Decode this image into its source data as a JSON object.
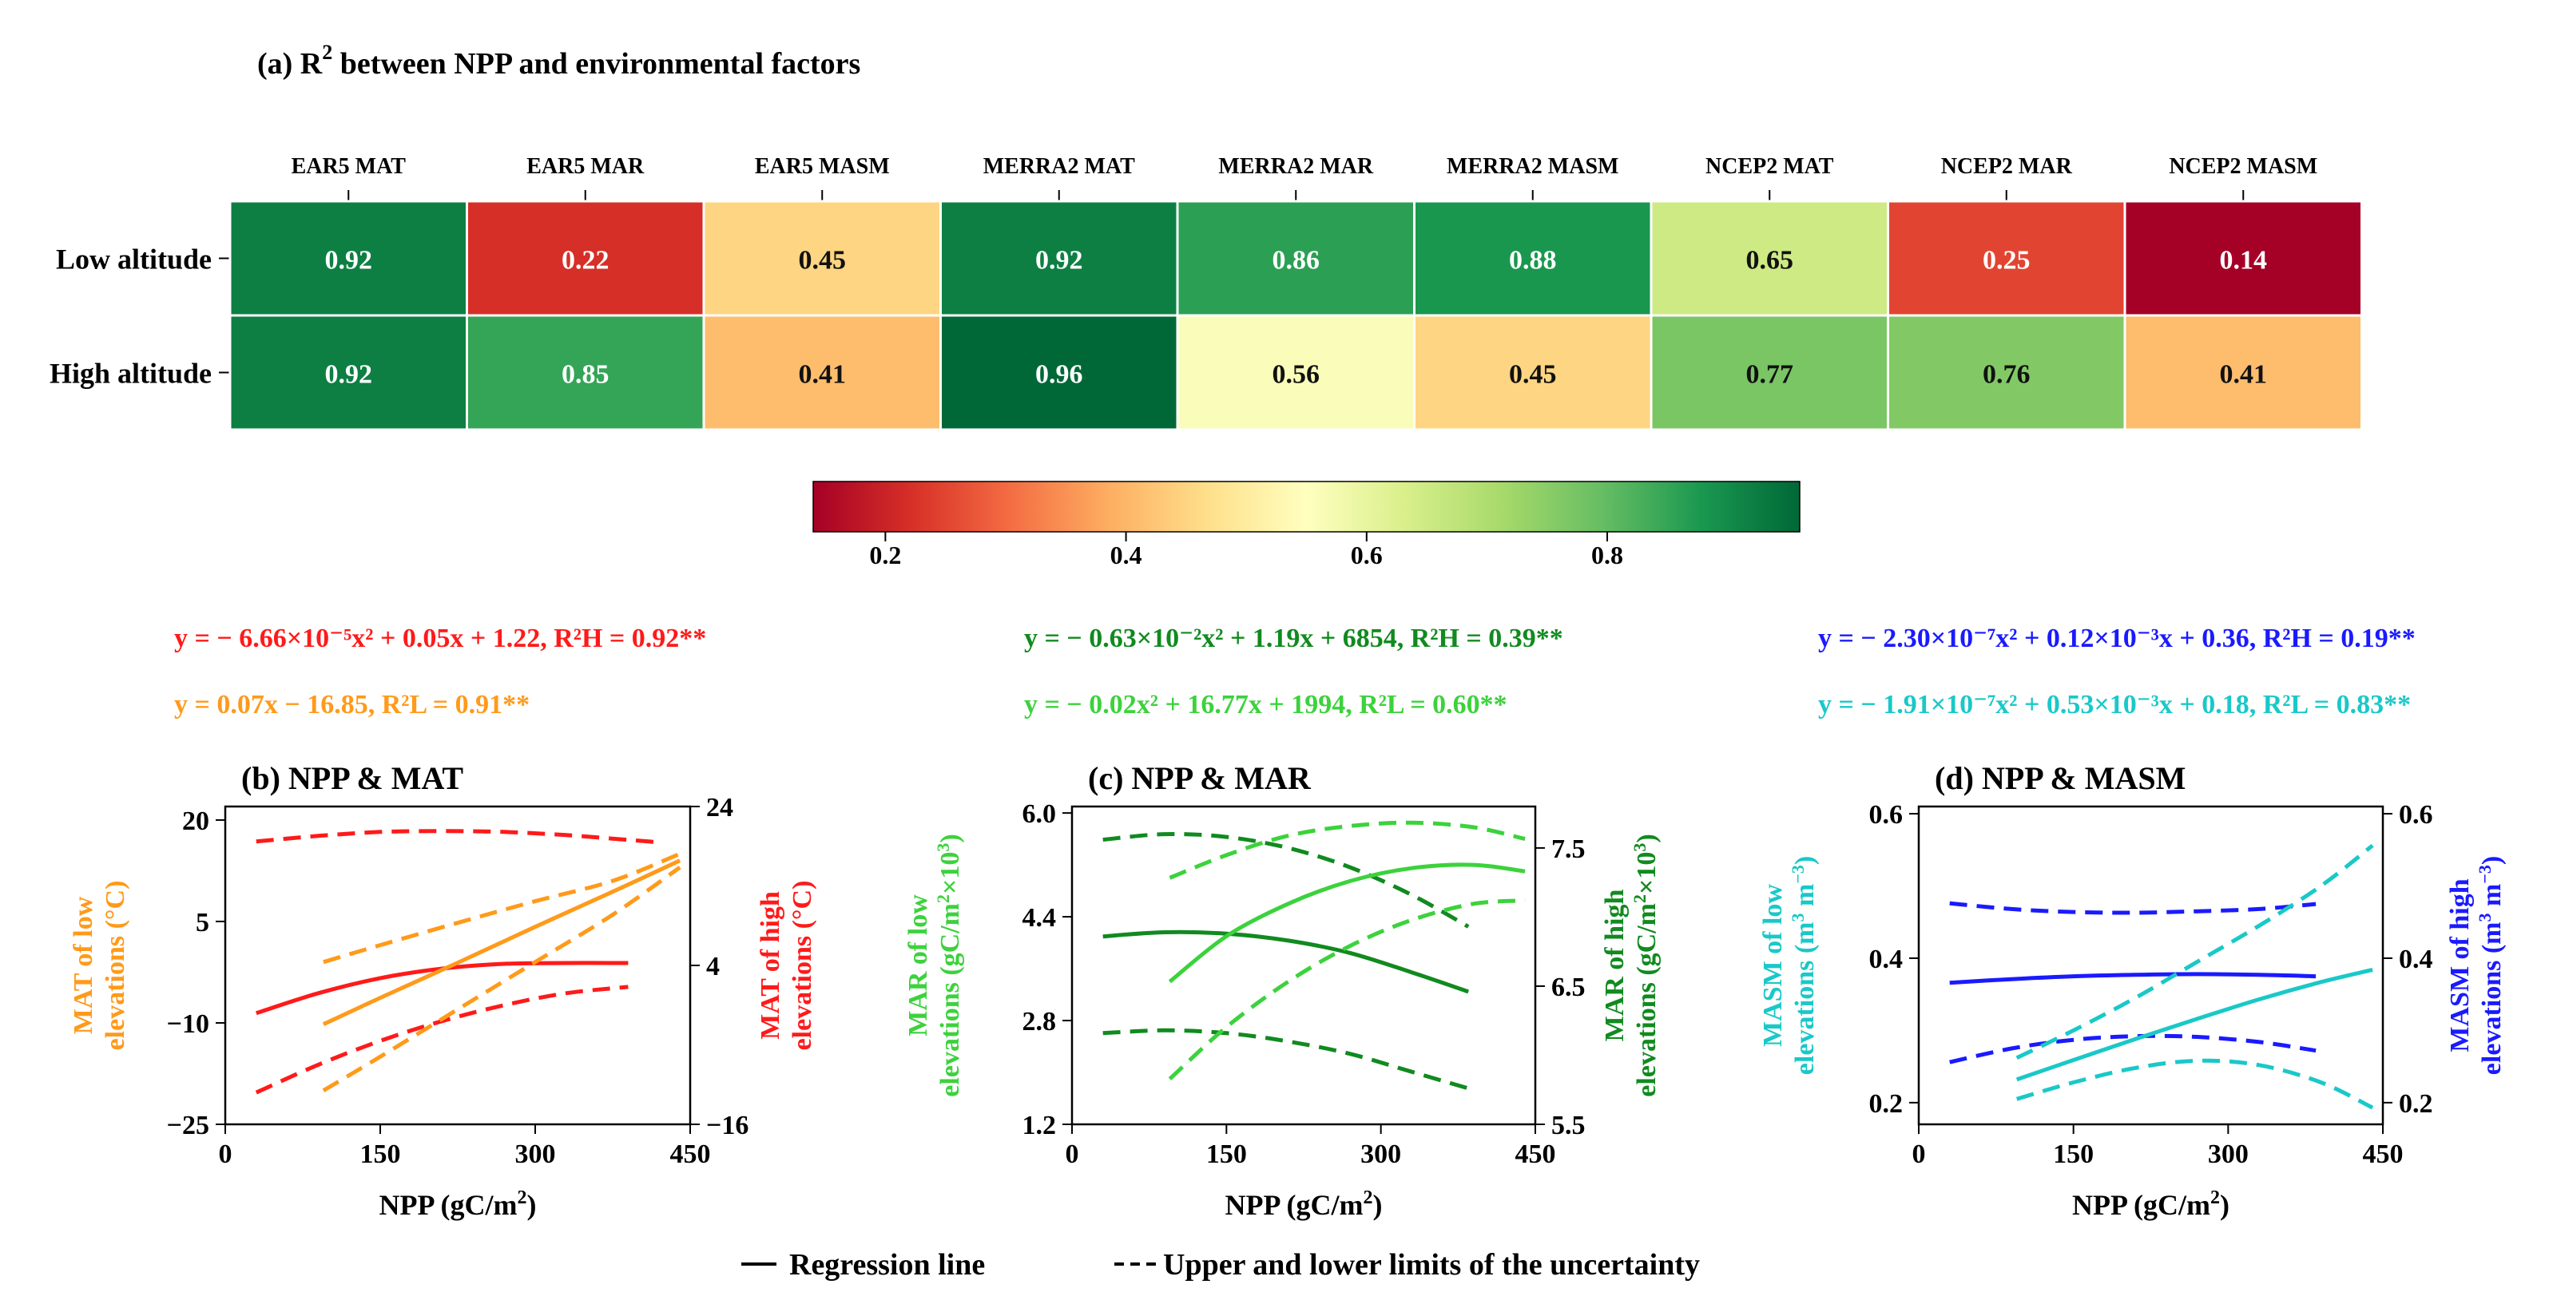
{
  "panel_a": {
    "title": "(a) R",
    "title_sup": "2",
    "title_rest": " between NPP and environmental factors"
  },
  "legend": {
    "solid_label": "Regression line",
    "dashed_label": "Upper and lower limits of the uncertainty"
  },
  "colors": {
    "red": "#ff1a1a",
    "orange": "#ff9a1a",
    "darkgreen": "#118a1f",
    "lightgreen": "#3cd23c",
    "blue": "#1a1aff",
    "cyan": "#1ac8c8"
  },
  "equations": {
    "b_high": "y = − 6.66×10⁻⁵x² + 0.05x + 1.22, R²H = 0.92**",
    "b_low": "y = 0.07x − 16.85, R²L = 0.91**",
    "c_high": "y = − 0.63×10⁻²x² + 1.19x + 6854, R²H = 0.39**",
    "c_low": "y = − 0.02x² + 16.77x + 1994, R²L = 0.60**",
    "d_high": "y = − 2.30×10⁻⁷x² + 0.12×10⁻³x + 0.36, R²H = 0.19**",
    "d_low": "y = − 1.91×10⁻⁷x² + 0.53×10⁻³x + 0.18, R²L = 0.83**"
  },
  "chart_data": [
    {
      "type": "heatmap",
      "title": "(a) R2 between NPP and environmental factors",
      "columns": [
        "EAR5 MAT",
        "EAR5 MAR",
        "EAR5 MASM",
        "MERRA2 MAT",
        "MERRA2 MAR",
        "MERRA2 MASM",
        "NCEP2 MAT",
        "NCEP2 MAR",
        "NCEP2 MASM"
      ],
      "rows": [
        "Low altitude",
        "High altitude"
      ],
      "values": [
        [
          0.92,
          0.22,
          0.45,
          0.92,
          0.86,
          0.88,
          0.65,
          0.25,
          0.14
        ],
        [
          0.92,
          0.85,
          0.41,
          0.96,
          0.56,
          0.45,
          0.77,
          0.76,
          0.41
        ]
      ],
      "labels": [
        [
          "0.92",
          "0.22",
          "0.45",
          "0.92",
          "0.86",
          "0.88",
          "0.65",
          "0.25",
          "0.14"
        ],
        [
          "0.92",
          "0.85",
          "0.41",
          "0.96",
          "0.56",
          "0.45",
          "0.77",
          "0.76",
          "0.41"
        ]
      ],
      "colorbar": {
        "range": [
          0.14,
          0.96
        ],
        "ticks": [
          0.2,
          0.4,
          0.6,
          0.8
        ],
        "tick_labels": [
          "0.2",
          "0.4",
          "0.6",
          "0.8"
        ],
        "colormap": "RdYlGn"
      }
    },
    {
      "type": "line",
      "title": "(b) NPP & MAT",
      "xlabel": "NPP (gC/m2)",
      "ylabel_left": "MAT of low elevations (°C)",
      "ylabel_right": "MAT of high elevations (°C)",
      "xlim": [
        0,
        450
      ],
      "ylim_left": [
        -25,
        22
      ],
      "ylim_right": [
        -16,
        24
      ],
      "xticks": [
        0,
        150,
        300,
        450
      ],
      "xtick_labels": [
        "0",
        "150",
        "300",
        "450"
      ],
      "yticks_left": [
        -25,
        -10,
        5,
        20
      ],
      "ytick_labels_left": [
        "−25",
        "−10",
        "5",
        "20"
      ],
      "yticks_right": [
        -16,
        4,
        24
      ],
      "ytick_labels_right": [
        "−16",
        "4",
        "24"
      ],
      "series": [
        {
          "name": "high_fit",
          "axis": "right",
          "color": "red",
          "dash": false,
          "x": [
            30,
            90,
            150,
            210,
            270,
            330,
            390
          ],
          "y": [
            -2.0,
            0.5,
            2.4,
            3.6,
            4.2,
            4.3,
            4.3
          ]
        },
        {
          "name": "high_upper",
          "axis": "right",
          "color": "red",
          "dash": true,
          "x": [
            30,
            90,
            150,
            210,
            270,
            330,
            390,
            420
          ],
          "y": [
            19.6,
            20.3,
            20.8,
            20.9,
            20.8,
            20.4,
            19.8,
            19.5
          ]
        },
        {
          "name": "high_lower",
          "axis": "right",
          "color": "red",
          "dash": true,
          "x": [
            30,
            90,
            150,
            210,
            270,
            330,
            390
          ],
          "y": [
            -12.0,
            -8.5,
            -5.5,
            -3.0,
            -1.0,
            0.5,
            1.3
          ]
        },
        {
          "name": "low_fit",
          "axis": "left",
          "color": "orange",
          "dash": false,
          "x": [
            95,
            150,
            225,
            300,
            375,
            440
          ],
          "y": [
            -10.2,
            -6.3,
            -1.1,
            4.2,
            9.4,
            14.0
          ]
        },
        {
          "name": "low_upper",
          "axis": "left",
          "color": "orange",
          "dash": true,
          "x": [
            95,
            150,
            225,
            300,
            375,
            440
          ],
          "y": [
            -1.0,
            1.5,
            4.8,
            8.0,
            11.0,
            15.0
          ]
        },
        {
          "name": "low_lower",
          "axis": "left",
          "color": "orange",
          "dash": true,
          "x": [
            95,
            150,
            225,
            300,
            375,
            440
          ],
          "y": [
            -20.0,
            -15.0,
            -8.0,
            -1.0,
            6.0,
            13.0
          ]
        }
      ]
    },
    {
      "type": "line",
      "title": "(c) NPP & MAR",
      "xlabel": "NPP (gC/m2)",
      "ylabel_left": "MAR of low elevations (gC/m2×103)",
      "ylabel_right": "MAR of high elevations (gC/m2×103)",
      "xlim": [
        0,
        450
      ],
      "ylim_left": [
        1.2,
        6.1
      ],
      "ylim_right": [
        5.5,
        7.8
      ],
      "xticks": [
        0,
        150,
        300,
        450
      ],
      "xtick_labels": [
        "0",
        "150",
        "300",
        "450"
      ],
      "yticks_left": [
        1.2,
        2.8,
        4.4,
        6.0
      ],
      "ytick_labels_left": [
        "1.2",
        "2.8",
        "4.4",
        "6.0"
      ],
      "yticks_right": [
        5.5,
        6.5,
        7.5
      ],
      "ytick_labels_right": [
        "5.5",
        "6.5",
        "7.5"
      ],
      "series": [
        {
          "name": "high_fit",
          "axis": "right",
          "color": "darkgreen",
          "dash": false,
          "x": [
            30,
            90,
            150,
            210,
            270,
            330,
            385
          ],
          "y": [
            6.86,
            6.89,
            6.88,
            6.83,
            6.74,
            6.6,
            6.46
          ]
        },
        {
          "name": "high_upper",
          "axis": "right",
          "color": "darkgreen",
          "dash": true,
          "x": [
            30,
            90,
            150,
            210,
            270,
            330,
            385
          ],
          "y": [
            7.56,
            7.6,
            7.58,
            7.5,
            7.36,
            7.16,
            6.93
          ]
        },
        {
          "name": "high_lower",
          "axis": "right",
          "color": "darkgreen",
          "dash": true,
          "x": [
            30,
            90,
            150,
            210,
            270,
            330,
            385
          ],
          "y": [
            6.16,
            6.18,
            6.16,
            6.1,
            6.01,
            5.88,
            5.76
          ]
        },
        {
          "name": "low_fit",
          "axis": "left",
          "color": "lightgreen",
          "dash": false,
          "x": [
            95,
            150,
            210,
            270,
            330,
            390,
            440
          ],
          "y": [
            3.4,
            4.1,
            4.6,
            4.95,
            5.15,
            5.2,
            5.1
          ]
        },
        {
          "name": "low_upper",
          "axis": "left",
          "color": "lightgreen",
          "dash": true,
          "x": [
            95,
            150,
            210,
            270,
            330,
            390,
            440
          ],
          "y": [
            5.0,
            5.35,
            5.65,
            5.8,
            5.85,
            5.78,
            5.6
          ]
        },
        {
          "name": "low_lower",
          "axis": "left",
          "color": "lightgreen",
          "dash": true,
          "x": [
            95,
            150,
            210,
            270,
            330,
            390,
            440
          ],
          "y": [
            1.9,
            2.7,
            3.4,
            3.95,
            4.35,
            4.6,
            4.65
          ]
        }
      ]
    },
    {
      "type": "line",
      "title": "(d) NPP & MASM",
      "xlabel": "NPP (gC/m2)",
      "ylabel_left": "MASM of low elevations (m3 m−3)",
      "ylabel_right": "MASM of high elevations (m3 m−3)",
      "xlim": [
        0,
        450
      ],
      "ylim_left": [
        0.17,
        0.61
      ],
      "ylim_right": [
        0.17,
        0.61
      ],
      "xticks": [
        0,
        150,
        300,
        450
      ],
      "xtick_labels": [
        "0",
        "150",
        "300",
        "450"
      ],
      "yticks_left": [
        0.2,
        0.4,
        0.6
      ],
      "ytick_labels_left": [
        "0.2",
        "0.4",
        "0.6"
      ],
      "yticks_right": [
        0.2,
        0.4,
        0.6
      ],
      "ytick_labels_right": [
        "0.2",
        "0.4",
        "0.6"
      ],
      "series": [
        {
          "name": "high_fit",
          "axis": "right",
          "color": "blue",
          "dash": false,
          "x": [
            30,
            90,
            150,
            210,
            270,
            330,
            385
          ],
          "y": [
            0.366,
            0.371,
            0.375,
            0.377,
            0.378,
            0.377,
            0.375
          ]
        },
        {
          "name": "high_upper",
          "axis": "right",
          "color": "blue",
          "dash": true,
          "x": [
            30,
            90,
            150,
            210,
            270,
            330,
            385
          ],
          "y": [
            0.476,
            0.468,
            0.464,
            0.463,
            0.465,
            0.468,
            0.475
          ]
        },
        {
          "name": "high_lower",
          "axis": "right",
          "color": "blue",
          "dash": true,
          "x": [
            30,
            90,
            150,
            210,
            270,
            330,
            385
          ],
          "y": [
            0.256,
            0.275,
            0.287,
            0.292,
            0.291,
            0.284,
            0.272
          ]
        },
        {
          "name": "low_fit",
          "axis": "left",
          "color": "cyan",
          "dash": false,
          "x": [
            95,
            150,
            210,
            270,
            330,
            390,
            440
          ],
          "y": [
            0.232,
            0.259,
            0.288,
            0.316,
            0.343,
            0.367,
            0.384
          ]
        },
        {
          "name": "low_upper",
          "axis": "left",
          "color": "cyan",
          "dash": true,
          "x": [
            95,
            150,
            210,
            270,
            330,
            390,
            440
          ],
          "y": [
            0.262,
            0.3,
            0.345,
            0.395,
            0.445,
            0.5,
            0.556
          ]
        },
        {
          "name": "low_lower",
          "axis": "left",
          "color": "cyan",
          "dash": true,
          "x": [
            95,
            150,
            210,
            270,
            330,
            390,
            440
          ],
          "y": [
            0.205,
            0.228,
            0.248,
            0.258,
            0.252,
            0.228,
            0.193
          ]
        }
      ]
    }
  ]
}
